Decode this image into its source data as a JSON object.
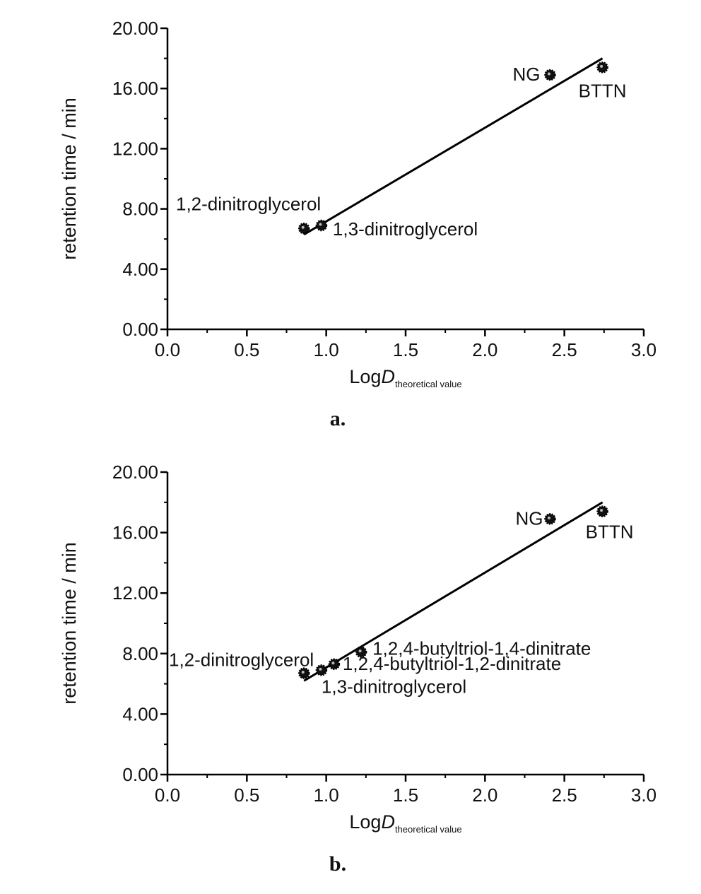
{
  "chart_data": [
    {
      "type": "scatter",
      "panel_label": "a.",
      "xlabel_main": "Log",
      "xlabel_italic": "D",
      "xlabel_sub": "theoretical value",
      "ylabel": "retention time / min",
      "xlim": [
        0.0,
        3.0
      ],
      "ylim": [
        0.0,
        20.0
      ],
      "xticks": [
        "0.0",
        "0.5",
        "1.0",
        "1.5",
        "2.0",
        "2.5",
        "3.0"
      ],
      "yticks": [
        "0.00",
        "4.00",
        "8.00",
        "12.00",
        "16.00",
        "20.00"
      ],
      "grid": false,
      "points": [
        {
          "label": "1,2-dinitroglycerol",
          "x": 0.86,
          "y": 6.7
        },
        {
          "label": "1,3-dinitroglycerol",
          "x": 0.97,
          "y": 6.9
        },
        {
          "label": "NG",
          "x": 2.41,
          "y": 16.9
        },
        {
          "label": "BTTN",
          "x": 2.74,
          "y": 17.4
        }
      ],
      "fit_line": {
        "x": [
          0.86,
          2.74
        ],
        "y": [
          6.3,
          18.0
        ]
      }
    },
    {
      "type": "scatter",
      "panel_label": "b.",
      "xlabel_main": "Log",
      "xlabel_italic": "D",
      "xlabel_sub": "theoretical value",
      "ylabel": "retention time / min",
      "xlim": [
        0.0,
        3.0
      ],
      "ylim": [
        0.0,
        20.0
      ],
      "xticks": [
        "0.0",
        "0.5",
        "1.0",
        "1.5",
        "2.0",
        "2.5",
        "3.0"
      ],
      "yticks": [
        "0.00",
        "4.00",
        "8.00",
        "12.00",
        "16.00",
        "20.00"
      ],
      "grid": false,
      "points": [
        {
          "label": "1,2-dinitroglycerol",
          "x": 0.86,
          "y": 6.7
        },
        {
          "label": "1,3-dinitroglycerol",
          "x": 0.97,
          "y": 6.9
        },
        {
          "label": "1,2,4-butyltriol-1,2-dinitrate",
          "x": 1.05,
          "y": 7.3
        },
        {
          "label": "1,2,4-butyltriol-1,4-dinitrate",
          "x": 1.22,
          "y": 8.1
        },
        {
          "label": "NG",
          "x": 2.41,
          "y": 16.9
        },
        {
          "label": "BTTN",
          "x": 2.74,
          "y": 17.4
        }
      ],
      "fit_line": {
        "x": [
          0.86,
          2.74
        ],
        "y": [
          6.2,
          18.0
        ]
      }
    }
  ]
}
